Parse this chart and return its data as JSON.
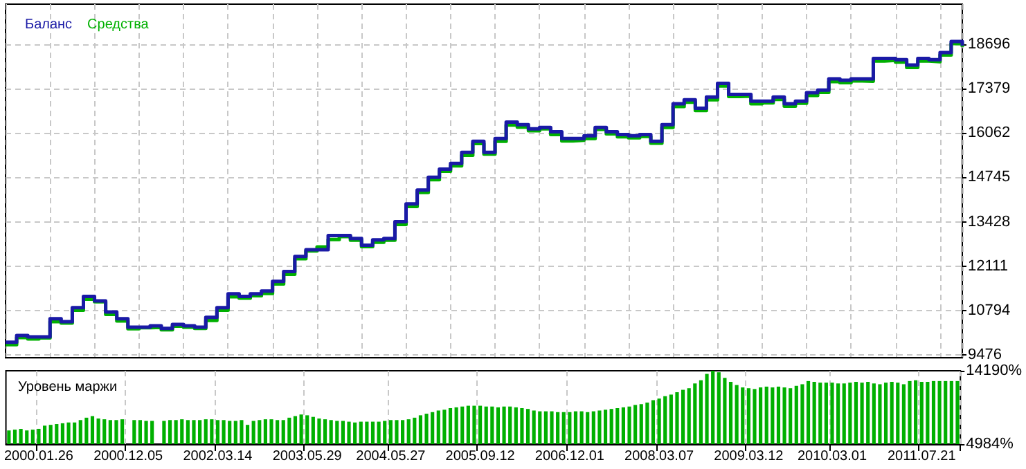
{
  "chart_data": [
    {
      "type": "step",
      "legend": "top left",
      "grid": true,
      "tick_labels": "y",
      "ylim": [
        9390,
        19890
      ],
      "yticks": [
        9476,
        10794,
        12111,
        13428,
        14745,
        16062,
        17379,
        18696
      ],
      "categories": [
        null,
        null,
        null,
        null,
        null,
        null,
        null,
        null,
        null,
        null,
        null,
        null,
        null,
        null,
        null,
        null,
        null,
        null,
        null,
        null,
        null,
        null,
        null,
        null,
        null,
        null,
        null,
        null,
        null,
        null,
        null,
        null,
        null,
        null,
        null,
        null,
        null,
        null,
        null,
        null,
        null,
        null,
        null,
        null,
        null,
        null,
        null,
        null,
        null,
        null,
        null,
        null,
        null,
        null,
        null,
        null,
        null,
        null,
        null,
        null,
        null,
        null,
        null,
        null,
        null,
        null,
        null,
        null,
        null,
        null,
        null,
        null,
        null,
        null,
        null,
        null,
        null,
        null,
        null,
        null,
        null,
        null,
        null,
        null,
        null,
        null,
        null
      ],
      "series": [
        {
          "name": "Средства",
          "color": "#00b000",
          "values": [
            9780,
            9990,
            9950,
            9980,
            10460,
            10420,
            10800,
            11130,
            11050,
            10680,
            10480,
            10250,
            10280,
            10290,
            10220,
            10330,
            10300,
            10260,
            10500,
            10800,
            11200,
            11160,
            11230,
            11300,
            11580,
            11870,
            12330,
            12560,
            12680,
            12900,
            12990,
            12880,
            12690,
            12820,
            12880,
            13350,
            13880,
            14300,
            14680,
            14930,
            15090,
            15400,
            15750,
            15440,
            15820,
            16300,
            16240,
            16130,
            16190,
            16020,
            15830,
            15850,
            15900,
            16170,
            16040,
            15950,
            15920,
            15960,
            15760,
            16230,
            16850,
            16980,
            16730,
            17050,
            17460,
            17150,
            17160,
            16930,
            16960,
            17060,
            16860,
            16950,
            17180,
            17270,
            17590,
            17560,
            17610,
            17600,
            18200,
            18220,
            18170,
            18010,
            18200,
            18180,
            18380,
            18720,
            18620
          ]
        },
        {
          "name": "Баланс",
          "color": "#1a1aa6",
          "values": [
            9850,
            10050,
            10010,
            10010,
            10550,
            10460,
            10880,
            11210,
            11080,
            10750,
            10550,
            10300,
            10300,
            10340,
            10260,
            10380,
            10340,
            10300,
            10590,
            10880,
            11290,
            11210,
            11290,
            11370,
            11660,
            11950,
            12400,
            12600,
            12600,
            13020,
            13020,
            12930,
            12730,
            12890,
            12930,
            13430,
            13960,
            14370,
            14750,
            14990,
            15160,
            15490,
            15820,
            15490,
            15900,
            16390,
            16310,
            16190,
            16230,
            16100,
            15900,
            15900,
            15980,
            16230,
            16100,
            16020,
            15980,
            16020,
            15820,
            16310,
            16930,
            17050,
            16800,
            17130,
            17540,
            17210,
            17210,
            17010,
            17010,
            17130,
            16930,
            17010,
            17260,
            17340,
            17670,
            17630,
            17670,
            17670,
            18280,
            18280,
            18240,
            18080,
            18280,
            18240,
            18450,
            18780,
            18660
          ]
        }
      ]
    },
    {
      "type": "bar",
      "title": "Уровень маржи",
      "grid": "x",
      "ylim": [
        4984,
        14190
      ],
      "yticks": [
        {
          "value": 4984,
          "label": "4984%"
        },
        {
          "value": 14190,
          "label": "14190%"
        }
      ],
      "categories": [
        null,
        null,
        null,
        null,
        null,
        "2000.01.26",
        null,
        null,
        null,
        null,
        null,
        null,
        null,
        null,
        null,
        null,
        null,
        null,
        null,
        null,
        "2000.12.05",
        null,
        null,
        null,
        null,
        null,
        null,
        null,
        null,
        null,
        null,
        null,
        null,
        null,
        null,
        "2002.03.14",
        null,
        null,
        null,
        null,
        null,
        null,
        null,
        null,
        null,
        null,
        null,
        null,
        null,
        null,
        "2003.05.29",
        null,
        null,
        null,
        null,
        null,
        null,
        null,
        null,
        null,
        null,
        null,
        null,
        null,
        "2004.05.27",
        null,
        null,
        null,
        null,
        null,
        null,
        null,
        null,
        null,
        null,
        null,
        null,
        null,
        null,
        "2005.09.12",
        null,
        null,
        null,
        null,
        null,
        null,
        null,
        null,
        null,
        null,
        null,
        null,
        null,
        null,
        "2006.12.01",
        null,
        null,
        null,
        null,
        null,
        null,
        null,
        null,
        null,
        null,
        null,
        null,
        null,
        null,
        "2008.03.07",
        null,
        null,
        null,
        null,
        null,
        null,
        null,
        null,
        null,
        null,
        null,
        null,
        null,
        null,
        "2009.03.12",
        null,
        null,
        null,
        null,
        null,
        null,
        null,
        null,
        null,
        null,
        null,
        null,
        null,
        "2010.03.01",
        null,
        null,
        null,
        null,
        null,
        null,
        null,
        null,
        null,
        null,
        null,
        null,
        null,
        null,
        "2011.07.21",
        null,
        null,
        null,
        null,
        null,
        null
      ],
      "color": "#00b000",
      "values": [
        6700,
        6800,
        6900,
        6700,
        6800,
        6900,
        7300,
        7400,
        7500,
        7600,
        7700,
        7700,
        8000,
        8300,
        8500,
        8200,
        8100,
        8000,
        8000,
        8100,
        null,
        8000,
        8000,
        7900,
        7900,
        null,
        7900,
        8000,
        8000,
        8100,
        8000,
        8000,
        8000,
        8100,
        8100,
        8000,
        8000,
        7900,
        7900,
        8000,
        7400,
        7900,
        8000,
        8100,
        8100,
        8000,
        8000,
        8300,
        8500,
        8700,
        8600,
        8400,
        8200,
        8100,
        8000,
        7900,
        7900,
        7800,
        7700,
        7800,
        7800,
        7800,
        7800,
        7900,
        8000,
        8000,
        8000,
        8100,
        8300,
        8600,
        8800,
        9000,
        9200,
        9300,
        9500,
        9600,
        9700,
        9800,
        9800,
        9800,
        9700,
        9700,
        9600,
        9700,
        9700,
        9600,
        9500,
        9400,
        9200,
        9100,
        9100,
        9100,
        9000,
        9000,
        9000,
        9100,
        9100,
        9000,
        9100,
        9200,
        9300,
        9400,
        9500,
        9600,
        9700,
        9900,
        10000,
        10200,
        10500,
        10700,
        11000,
        11200,
        11500,
        11800,
        12000,
        12600,
        13000,
        13800,
        14190,
        14000,
        13300,
        12800,
        12400,
        12100,
        12000,
        11900,
        12100,
        12200,
        12100,
        12200,
        12100,
        12000,
        12300,
        12500,
        12900,
        12800,
        12700,
        12700,
        12700,
        12600,
        12600,
        12700,
        12800,
        12700,
        12800,
        12600,
        12500,
        12700,
        12800,
        12700,
        12500,
        12900,
        13000,
        12800,
        12800,
        12900,
        12900,
        12900,
        12900,
        12900
      ]
    }
  ]
}
